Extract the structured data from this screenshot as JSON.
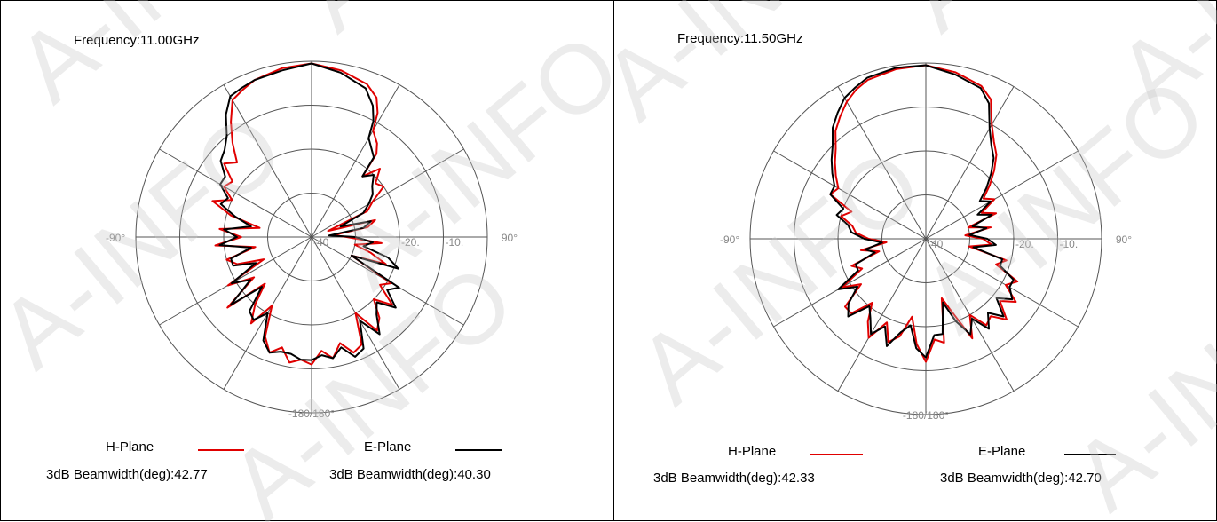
{
  "chart_data": [
    {
      "type": "polar",
      "title": "Frequency:11.00GHz",
      "angle_labels": [
        "-90°",
        "90°",
        "-180/180°"
      ],
      "radial_tick_labels": [
        "-40",
        "-20.",
        "-10."
      ],
      "radial_range_db": [
        -40,
        0
      ],
      "grid": true,
      "series": [
        {
          "name": "H-Plane",
          "color": "#e00000",
          "beamwidth_label": "3dB Beamwidth(deg):42.77",
          "angles_deg": [
            0,
            10,
            20,
            25,
            28,
            30,
            35,
            38,
            40,
            45,
            50,
            55,
            60,
            65,
            70,
            75,
            80,
            85,
            90,
            95,
            100,
            105,
            110,
            115,
            120,
            125,
            130,
            135,
            140,
            145,
            150,
            155,
            160,
            165,
            170,
            175,
            180,
            185,
            190,
            195,
            200,
            205,
            210,
            215,
            220,
            225,
            230,
            235,
            240,
            245,
            250,
            255,
            260,
            265,
            270,
            275,
            280,
            285,
            290,
            295,
            300,
            305,
            310,
            315,
            320,
            325,
            330,
            335,
            340,
            350
          ],
          "r_db": [
            -0.5,
            -1.5,
            -3,
            -5,
            -8,
            -12,
            -14,
            -16,
            -22,
            -18,
            -21,
            -20,
            -24,
            -26,
            -36,
            -25,
            -27,
            -35,
            -32,
            -24,
            -30,
            -26,
            -22,
            -30,
            -19,
            -21,
            -16,
            -20,
            -16,
            -14,
            -20,
            -13,
            -12,
            -15,
            -12,
            -14,
            -11,
            -12,
            -11,
            -14,
            -12,
            -15,
            -22,
            -16,
            -20,
            -25,
            -15,
            -24,
            -18,
            -28,
            -22,
            -20,
            -27,
            -18,
            -24,
            -19,
            -28,
            -21,
            -16,
            -20,
            -17,
            -18,
            -14,
            -16,
            -12,
            -8,
            -4,
            -3,
            -2,
            -1
          ]
        },
        {
          "name": "E-Plane",
          "color": "#000000",
          "beamwidth_label": "3dB Beamwidth(deg):40.30",
          "angles_deg": [
            0,
            10,
            20,
            25,
            28,
            30,
            35,
            38,
            40,
            45,
            50,
            55,
            60,
            65,
            70,
            75,
            80,
            85,
            90,
            95,
            100,
            105,
            110,
            115,
            120,
            125,
            130,
            135,
            140,
            145,
            150,
            155,
            160,
            165,
            170,
            175,
            180,
            185,
            190,
            195,
            200,
            205,
            210,
            215,
            220,
            225,
            230,
            235,
            240,
            245,
            250,
            255,
            260,
            265,
            270,
            275,
            280,
            285,
            290,
            295,
            300,
            305,
            310,
            315,
            320,
            325,
            330,
            335,
            340,
            350
          ],
          "r_db": [
            -0.5,
            -2,
            -4,
            -7,
            -10,
            -14,
            -16,
            -17,
            -22,
            -20,
            -22,
            -23,
            -25,
            -27,
            -33,
            -26,
            -28,
            -36,
            -30,
            -26,
            -28,
            -22,
            -19,
            -30,
            -17,
            -19,
            -15,
            -19,
            -17,
            -13,
            -18,
            -12,
            -11,
            -14,
            -12,
            -13,
            -12,
            -12,
            -13,
            -13,
            -12,
            -14,
            -20,
            -17,
            -18,
            -24,
            -16,
            -23,
            -19,
            -26,
            -21,
            -21,
            -26,
            -19,
            -23,
            -20,
            -26,
            -22,
            -18,
            -19,
            -16,
            -16,
            -13,
            -12,
            -10,
            -6,
            -3,
            -2.5,
            -2,
            -1.5
          ]
        }
      ]
    },
    {
      "type": "polar",
      "title": "Frequency:11.50GHz",
      "angle_labels": [
        "-90°",
        "90°",
        "-180/180°"
      ],
      "radial_tick_labels": [
        "-40",
        "-20.",
        "-10."
      ],
      "radial_range_db": [
        -40,
        0
      ],
      "grid": true,
      "series": [
        {
          "name": "H-Plane",
          "color": "#e00000",
          "beamwidth_label": "3dB Beamwidth(deg):42.33",
          "angles_deg": [
            0,
            10,
            20,
            25,
            30,
            35,
            40,
            45,
            50,
            55,
            60,
            65,
            70,
            75,
            80,
            85,
            90,
            95,
            100,
            105,
            110,
            115,
            120,
            125,
            130,
            135,
            140,
            145,
            150,
            155,
            160,
            165,
            170,
            175,
            180,
            185,
            190,
            195,
            200,
            205,
            210,
            215,
            220,
            225,
            230,
            235,
            240,
            245,
            250,
            255,
            260,
            265,
            270,
            275,
            280,
            285,
            290,
            295,
            300,
            305,
            310,
            315,
            320,
            325,
            330,
            335,
            340,
            350
          ],
          "r_db": [
            -0.5,
            -1.5,
            -3,
            -5,
            -10,
            -13,
            -15,
            -18,
            -21,
            -24,
            -22,
            -26,
            -23,
            -30,
            -25,
            -31,
            -27,
            -25,
            -30,
            -21,
            -23,
            -17,
            -19,
            -15,
            -18,
            -14,
            -17,
            -16,
            -20,
            -15,
            -22,
            -26,
            -16,
            -17,
            -12,
            -16,
            -22,
            -17,
            -15,
            -19,
            -14,
            -17,
            -21,
            -16,
            -16,
            -22,
            -18,
            -24,
            -22,
            -29,
            -25,
            -31,
            -27,
            -24,
            -23,
            -20,
            -22,
            -16,
            -17,
            -15,
            -13,
            -11,
            -8,
            -6,
            -4,
            -2.5,
            -1.5,
            -0.8
          ]
        },
        {
          "name": "E-Plane",
          "color": "#000000",
          "beamwidth_label": "3dB Beamwidth(deg):42.70",
          "angles_deg": [
            0,
            10,
            20,
            25,
            30,
            35,
            40,
            45,
            50,
            55,
            60,
            65,
            70,
            75,
            80,
            85,
            90,
            95,
            100,
            105,
            110,
            115,
            120,
            125,
            130,
            135,
            140,
            145,
            150,
            155,
            160,
            165,
            170,
            175,
            180,
            185,
            190,
            195,
            200,
            205,
            210,
            215,
            220,
            225,
            230,
            235,
            240,
            245,
            250,
            255,
            260,
            265,
            270,
            275,
            280,
            285,
            290,
            295,
            300,
            305,
            310,
            315,
            320,
            325,
            330,
            335,
            340,
            350
          ],
          "r_db": [
            -0.5,
            -2,
            -3.5,
            -6,
            -11,
            -14,
            -16,
            -19,
            -22,
            -25,
            -23,
            -27,
            -24,
            -29,
            -26,
            -30,
            -26,
            -24,
            -29,
            -22,
            -22,
            -18,
            -18,
            -16,
            -19,
            -15,
            -18,
            -15,
            -19,
            -16,
            -20,
            -25,
            -18,
            -18,
            -13,
            -15,
            -20,
            -18,
            -14,
            -18,
            -15,
            -18,
            -20,
            -15,
            -17,
            -21,
            -17,
            -23,
            -23,
            -28,
            -26,
            -30,
            -26,
            -23,
            -22,
            -19,
            -20,
            -16,
            -16,
            -14,
            -12,
            -10,
            -7,
            -5,
            -3,
            -2,
            -1,
            -0.5
          ]
        }
      ]
    }
  ],
  "colors": {
    "h_plane": "#e00000",
    "e_plane": "#000000",
    "grid": "#555555",
    "axis_label": "#888888",
    "watermark": "#c8c8c8"
  },
  "watermark": {
    "text": "A-INFO"
  }
}
